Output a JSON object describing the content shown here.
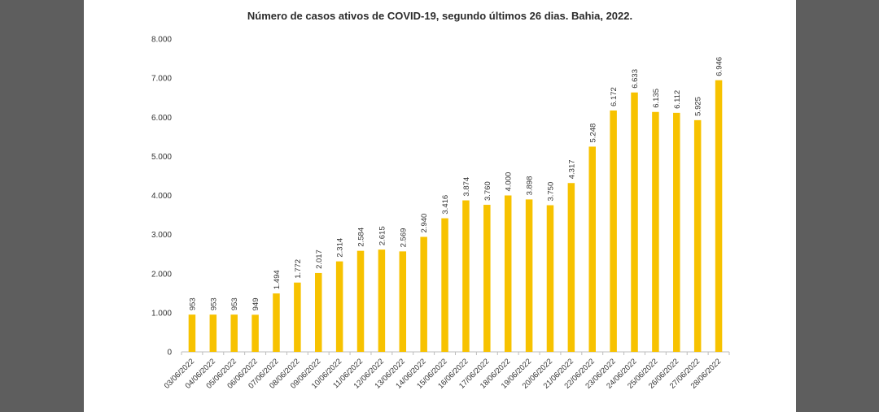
{
  "chart_data": {
    "type": "bar",
    "title": "Número de casos ativos de COVID-19, segundo últimos 26 dias.  Bahia, 2022.",
    "xlabel": "",
    "ylabel": "",
    "ylim": [
      0,
      8000
    ],
    "yticks": [
      "0",
      "1.000",
      "2.000",
      "3.000",
      "4.000",
      "5.000",
      "6.000",
      "7.000",
      "8.000"
    ],
    "categories": [
      "03/06/2022",
      "04/06/2022",
      "05/06/2022",
      "06/06/2022",
      "07/06/2022",
      "08/06/2022",
      "09/06/2022",
      "10/06/2022",
      "11/06/2022",
      "12/06/2022",
      "13/06/2022",
      "14/06/2022",
      "15/06/2022",
      "16/06/2022",
      "17/06/2022",
      "18/06/2022",
      "19/06/2022",
      "20/06/2022",
      "21/06/2022",
      "22/06/2022",
      "23/06/2022",
      "24/06/2022",
      "25/06/2022",
      "26/06/2022",
      "27/06/2022",
      "28/06/2022"
    ],
    "values": [
      953,
      953,
      953,
      949,
      1494,
      1772,
      2017,
      2314,
      2584,
      2615,
      2569,
      2940,
      3416,
      3874,
      3760,
      4000,
      3898,
      3750,
      4317,
      5248,
      6172,
      6633,
      6135,
      6112,
      5925,
      6946
    ],
    "value_labels": [
      "953",
      "953",
      "953",
      "949",
      "1.494",
      "1.772",
      "2.017",
      "2.314",
      "2.584",
      "2.615",
      "2.569",
      "2.940",
      "3.416",
      "3.874",
      "3.760",
      "4.000",
      "3.898",
      "3.750",
      "4.317",
      "5.248",
      "6.172",
      "6.633",
      "6.135",
      "6.112",
      "5.925",
      "6.946"
    ],
    "bar_color": "#f7c200",
    "grid": false,
    "legend": "none"
  }
}
